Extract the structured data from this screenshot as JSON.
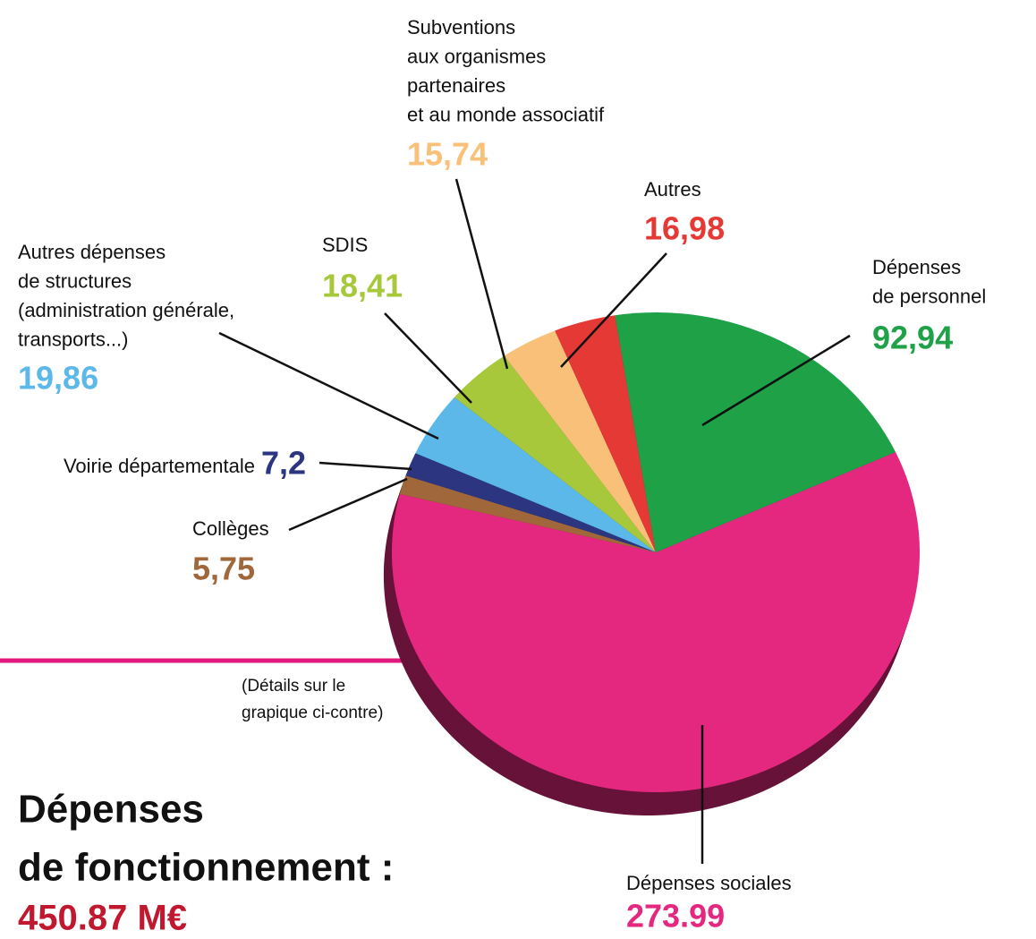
{
  "chart_data": {
    "type": "pie",
    "title": [
      "Dépenses",
      "de fonctionnement :"
    ],
    "total": "450.87 M€",
    "note": [
      "(Détails sur le",
      "grapique ci-contre)"
    ],
    "categories": [
      [
        "Dépenses sociales"
      ],
      [
        "Collèges"
      ],
      [
        "Voirie départementale"
      ],
      [
        "Autres dépenses",
        "de structures",
        "(administration générale,",
        "transports...)"
      ],
      [
        "SDIS"
      ],
      [
        "Subventions",
        "aux organismes",
        "partenaires",
        "et au monde associatif"
      ],
      [
        "Autres"
      ],
      [
        "Dépenses",
        "de personnel"
      ]
    ],
    "values": [
      273.99,
      5.75,
      7.2,
      19.86,
      18.41,
      15.74,
      16.98,
      92.94
    ],
    "value_labels": [
      "273.99",
      "5,75",
      "7,2",
      "19,86",
      "18,41",
      "15,74",
      "16,98",
      "92,94"
    ],
    "colors": [
      "#e5287f",
      "#a0673a",
      "#2b3580",
      "#5bb8e8",
      "#a6c83a",
      "#f9c07a",
      "#e53935",
      "#1fa148"
    ]
  }
}
